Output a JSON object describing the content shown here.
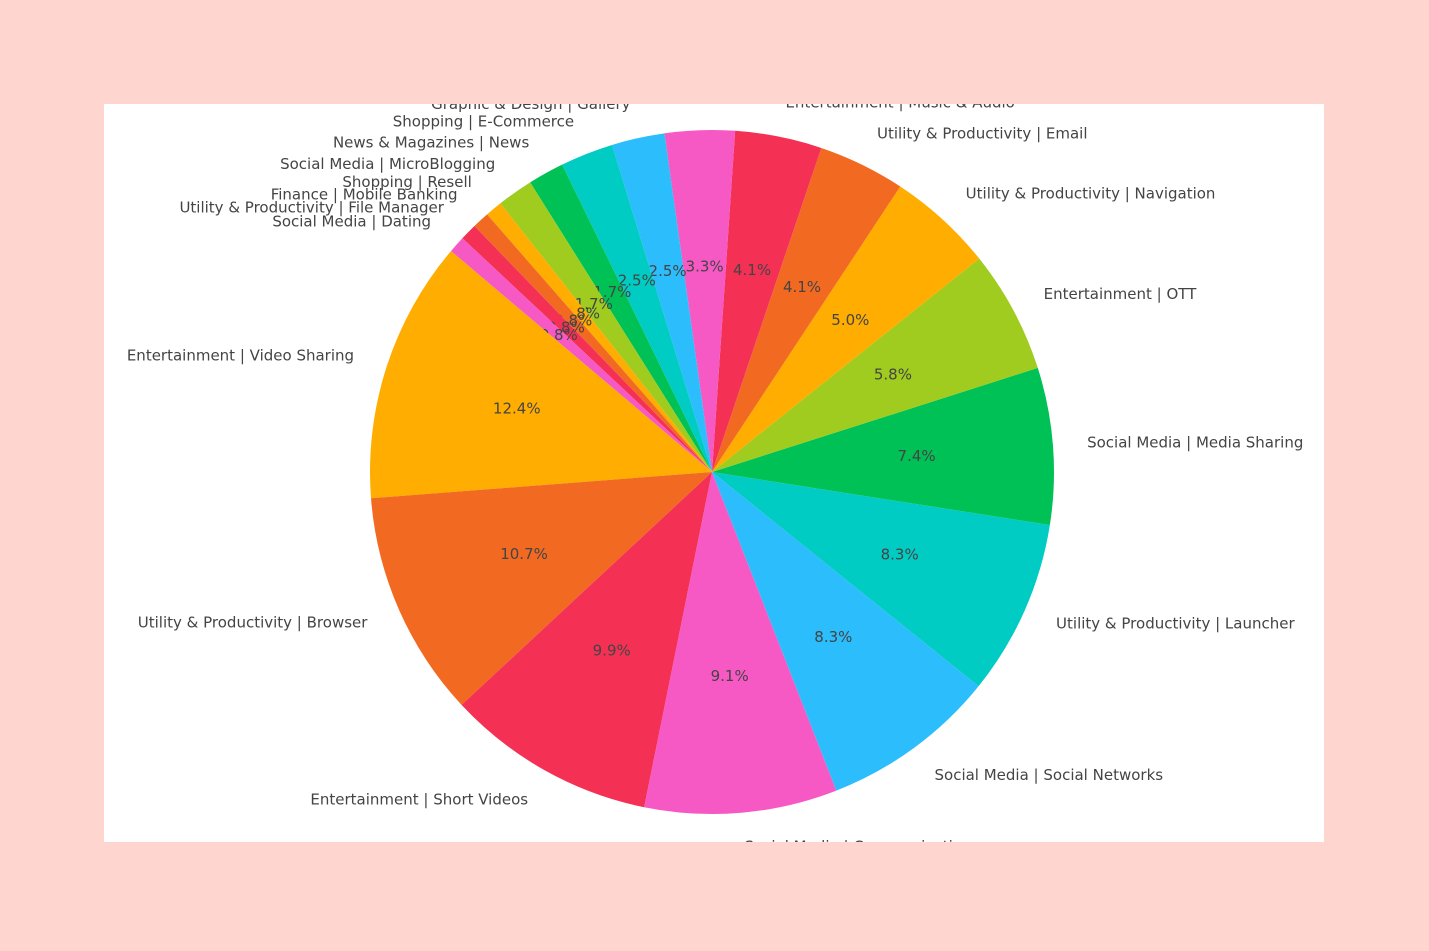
{
  "chart_data": {
    "type": "pie",
    "categories": [
      "Utility & Productivity | Launcher",
      "Social Media | Media Sharing",
      "Entertainment | OTT",
      "Utility & Productivity | Navigation",
      "Utility & Productivity | Email",
      "Entertainment | Music & Audio",
      null,
      "Graphic & Design | Gallery",
      "Shopping | E-Commerce",
      "News & Magazines | News",
      "Social Media | MicroBlogging",
      "Shopping | Resell",
      "Finance | Mobile Banking",
      "Utility & Productivity | File Manager",
      "Social Media | Dating",
      "Entertainment | Video Sharing",
      "Utility & Productivity | Browser",
      "Entertainment | Short Videos",
      "Social Media | Communication",
      "Social Media | Social Networks"
    ],
    "values": [
      8.3,
      7.4,
      5.8,
      5.0,
      4.1,
      4.1,
      3.3,
      2.5,
      2.5,
      1.7,
      1.7,
      0.8,
      0.8,
      0.8,
      0.8,
      12.4,
      10.7,
      9.9,
      9.1,
      8.3
    ],
    "value_labels": [
      "8.3%",
      "7.4%",
      "5.8%",
      "5.0%",
      "4.1%",
      "4.1%",
      "3.3%",
      "2.5%",
      "2.5%",
      "1.7%",
      "1.7%",
      "0.8%",
      "0.8%",
      "0.8%",
      "0.8%",
      "12.4%",
      "10.7%",
      "9.9%",
      "9.1%",
      "8.3%"
    ],
    "colors": [
      "#00ccc4",
      "#00c155",
      "#9fcc1e",
      "#ffad00",
      "#f26a22",
      "#f43155",
      "#f659c3",
      "#2bbdfc",
      "#00ccc4",
      "#00c155",
      "#9fcc1e",
      "#ffad00",
      "#f26a22",
      "#f43155",
      "#f659c3",
      "#ffad00",
      "#f26a22",
      "#f43155",
      "#f659c3",
      "#2bbdfc"
    ]
  }
}
